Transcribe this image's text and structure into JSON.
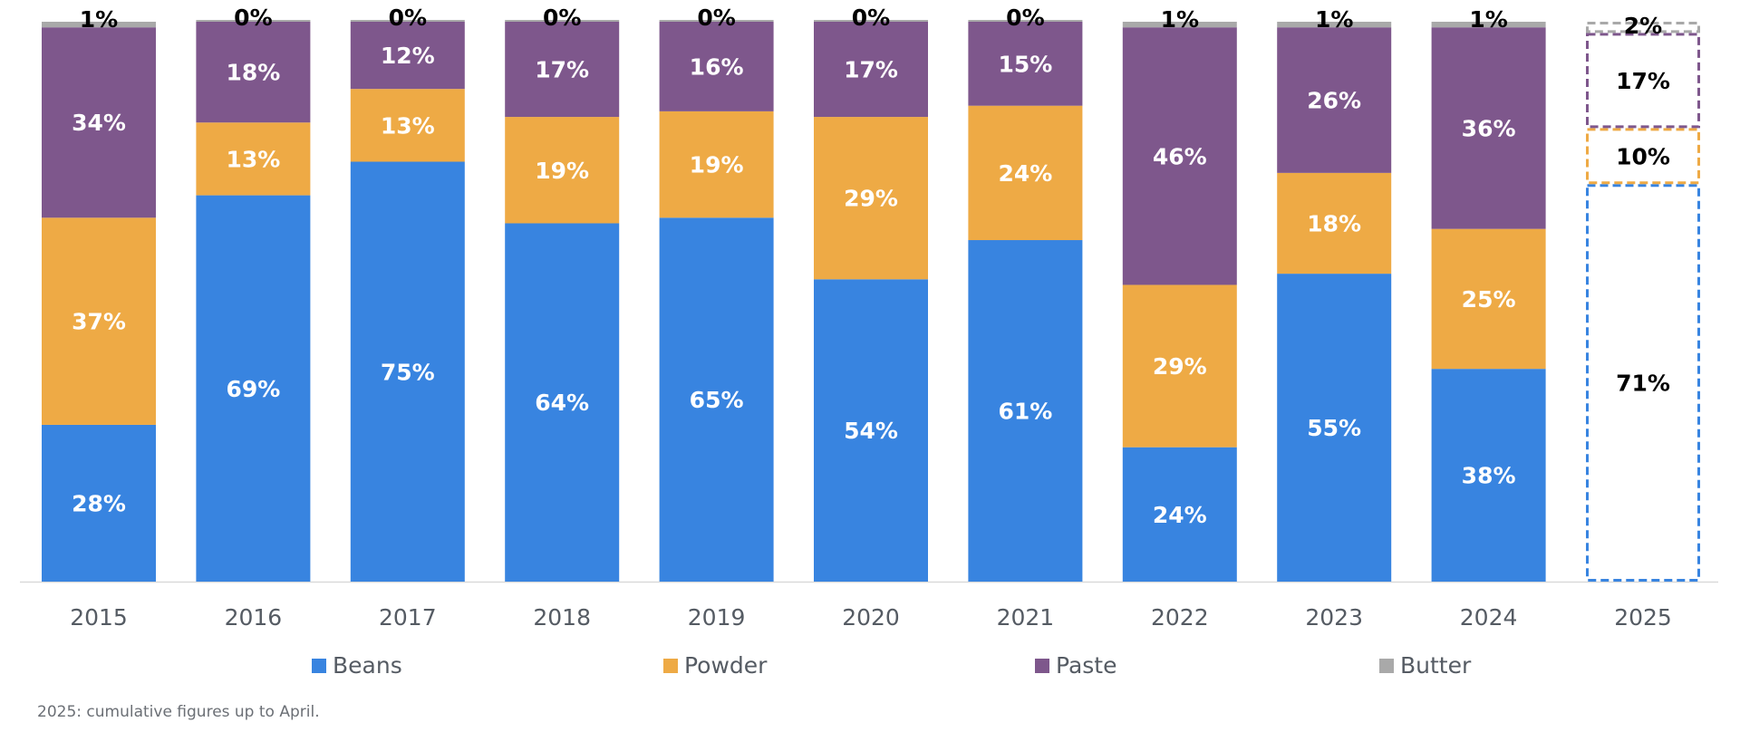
{
  "chart_data": {
    "type": "bar",
    "stacked": true,
    "normalized_percent": true,
    "categories": [
      "2015",
      "2016",
      "2017",
      "2018",
      "2019",
      "2020",
      "2021",
      "2022",
      "2023",
      "2024",
      "2025"
    ],
    "series": [
      {
        "name": "Beans",
        "color": "#3884E0",
        "values": [
          28,
          69,
          75,
          64,
          65,
          54,
          61,
          24,
          55,
          38,
          71
        ]
      },
      {
        "name": "Powder",
        "color": "#EEAA45",
        "values": [
          37,
          13,
          13,
          19,
          19,
          29,
          24,
          29,
          18,
          25,
          10
        ]
      },
      {
        "name": "Paste",
        "color": "#7E578C",
        "values": [
          34,
          18,
          12,
          17,
          16,
          17,
          15,
          46,
          26,
          36,
          17
        ]
      },
      {
        "name": "Butter",
        "color": "#A9A9A9",
        "values": [
          1,
          0,
          0,
          0,
          0,
          0,
          0,
          1,
          1,
          1,
          2
        ]
      }
    ],
    "data_label_suffix": "%",
    "partial_categories": [
      "2025"
    ],
    "ylim": [
      0,
      100
    ],
    "grid": false,
    "legend_position": "bottom",
    "title": "",
    "xlabel": "",
    "ylabel": ""
  },
  "footnote": "2025: cumulative figures up to April."
}
